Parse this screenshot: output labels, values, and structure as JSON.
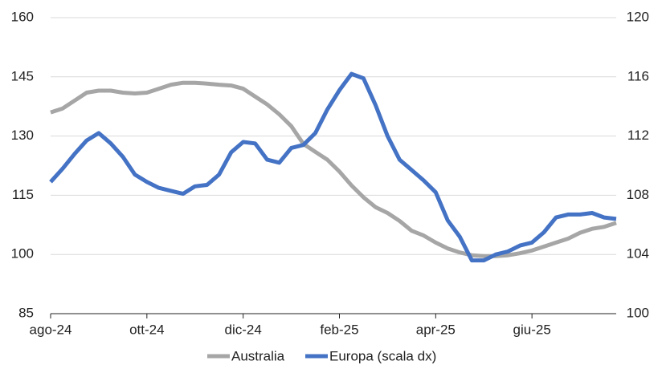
{
  "chart_data": {
    "type": "line",
    "categories": [
      "ago-24",
      null,
      null,
      null,
      null,
      null,
      null,
      null,
      "ott-24",
      null,
      null,
      null,
      null,
      null,
      null,
      null,
      "dic-24",
      null,
      null,
      null,
      null,
      null,
      null,
      null,
      "feb-25",
      null,
      null,
      null,
      null,
      null,
      null,
      null,
      "apr-25",
      null,
      null,
      null,
      null,
      null,
      null,
      null,
      "giu-25",
      null,
      null,
      null,
      null,
      null,
      null,
      null
    ],
    "series": [
      {
        "name": "Australia",
        "color": "#a6a6a6",
        "axis": "y",
        "values": [
          136,
          137,
          139,
          141,
          141.5,
          141.5,
          141,
          140.8,
          141,
          142,
          143,
          143.5,
          143.5,
          143.3,
          143,
          142.8,
          142,
          140,
          138,
          135.5,
          132.5,
          128,
          126,
          124,
          121,
          117.5,
          114.5,
          112,
          110.5,
          108.5,
          106,
          104.8,
          103,
          101.5,
          100.5,
          99.8,
          99.6,
          99.6,
          99.8,
          100.3,
          101,
          102,
          103,
          104,
          105.5,
          106.5,
          107,
          108
        ]
      },
      {
        "name": "Europa (scala dx)",
        "color": "#4472c4",
        "axis": "y2",
        "values": [
          108.9,
          109.8,
          110.8,
          111.7,
          112.2,
          111.5,
          110.6,
          109.4,
          108.9,
          108.5,
          108.3,
          108.1,
          108.6,
          108.7,
          109.4,
          110.9,
          111.6,
          111.5,
          110.4,
          110.2,
          111.2,
          111.4,
          112.2,
          113.8,
          115.1,
          116.2,
          115.9,
          114.1,
          112,
          110.4,
          109.7,
          109,
          108.2,
          106.3,
          105.2,
          103.6,
          103.6,
          104,
          104.2,
          104.6,
          104.8,
          105.5,
          106.5,
          106.7,
          106.7,
          106.8,
          106.5,
          106.4
        ]
      }
    ],
    "ylim": [
      85,
      160
    ],
    "yticks": [
      85,
      100,
      115,
      130,
      145,
      160
    ],
    "y2lim": [
      100,
      120
    ],
    "y2ticks": [
      100,
      104,
      108,
      112,
      116,
      120
    ],
    "grid": true,
    "legend": "bottom"
  }
}
